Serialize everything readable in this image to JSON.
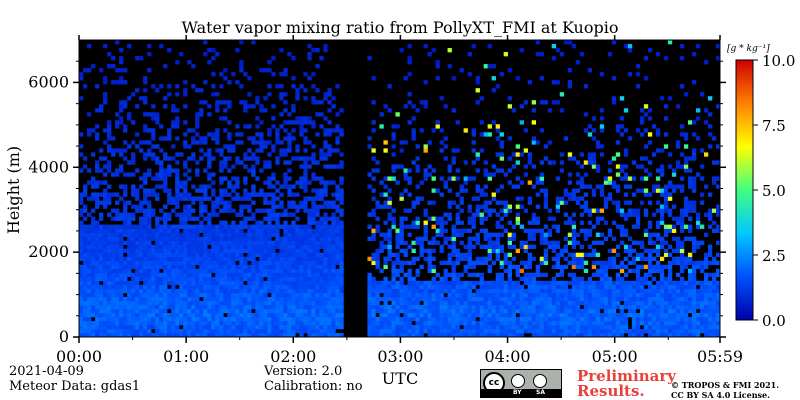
{
  "chart_data": {
    "type": "heatmap",
    "title": "Water vapor mixing ratio from PollyXT_FMI at Kuopio",
    "xlabel": "UTC",
    "ylabel": "Height (m)",
    "x_ticks": [
      "00:00",
      "01:00",
      "02:00",
      "03:00",
      "04:00",
      "05:00",
      "05:59"
    ],
    "x_range_hours": [
      0,
      5.983
    ],
    "y_ticks": [
      0,
      2000,
      4000,
      6000
    ],
    "ylim": [
      0,
      7000
    ],
    "colorbar": {
      "unit_label": "[g * kg⁻¹]",
      "ticks": [
        0.0,
        2.5,
        5.0,
        7.5,
        10.0
      ],
      "tick_labels": [
        "0.0",
        "2.5",
        "5.0",
        "7.5",
        "10.0"
      ],
      "range": [
        0,
        10
      ],
      "colormap": [
        "#0000a8",
        "#0050ff",
        "#00c8ff",
        "#40ff80",
        "#ffff00",
        "#ff8000",
        "#d00000"
      ]
    },
    "data_gap_hours": [
      2.5,
      2.68
    ],
    "profile_samples": [
      {
        "height": 0,
        "value": 1.7
      },
      {
        "height": 500,
        "value": 1.9
      },
      {
        "height": 1000,
        "value": 1.7
      },
      {
        "height": 1500,
        "value": 1.5
      },
      {
        "height": 2000,
        "value": 1.3
      },
      {
        "height": 3000,
        "value": 1.1
      },
      {
        "height": 4000,
        "value": 1.0
      },
      {
        "height": 5000,
        "value": 0.8
      },
      {
        "height": 6000,
        "value": 0.7
      },
      {
        "height": 7000,
        "value": 0.6
      }
    ]
  },
  "info": {
    "date": "2021-04-09",
    "meteor": "Meteor Data: gdas1",
    "version": "Version: 2.0",
    "calibration": "Calibration: no",
    "preliminary_line1": "Preliminary",
    "preliminary_line2": "Results.",
    "copyright_line1": "© TROPOS & FMI 2021.",
    "copyright_line2": "CC BY SA 4.0 License.",
    "license_badge": {
      "left": "BY",
      "right": "SA",
      "main": "cc"
    }
  }
}
